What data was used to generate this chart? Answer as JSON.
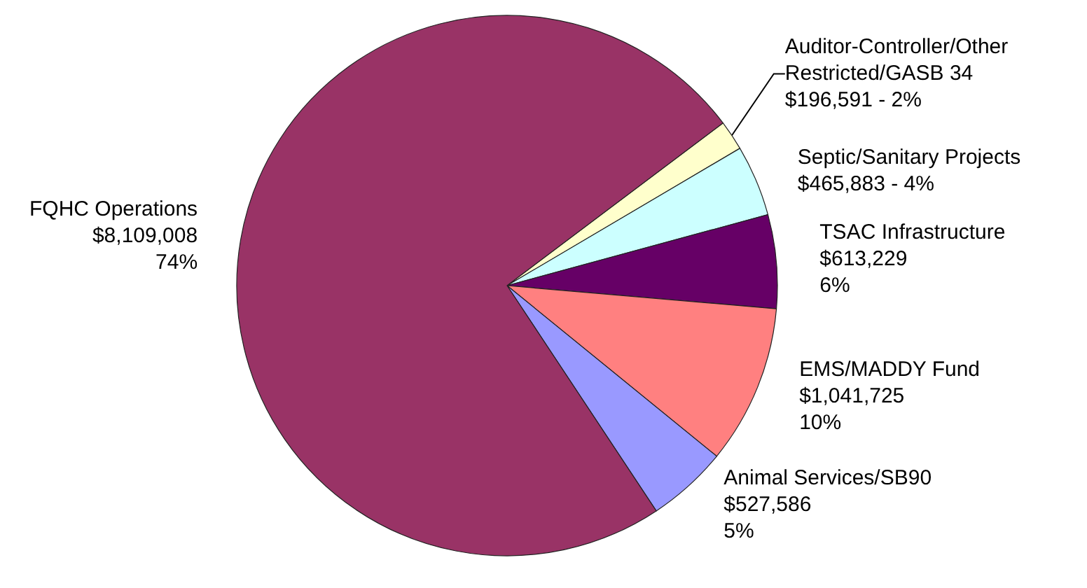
{
  "chart_data": {
    "type": "pie",
    "categories": [
      "Auditor-Controller/Other Restricted/GASB 34",
      "Septic/Sanitary Projects",
      "TSAC Infrastructure",
      "EMS/MADDY Fund",
      "Animal Services/SB90",
      "FQHC Operations"
    ],
    "values": [
      196591,
      465883,
      613229,
      1041725,
      527586,
      8109008
    ],
    "value_labels": [
      "$196,591 - 2%",
      "$465,883 - 4%",
      "$613,229\n6%",
      "$1,041,725\n10%",
      "$527,586\n5%",
      "$8,109,008\n74%"
    ],
    "colors": [
      "#ffffcc",
      "#ccffff",
      "#660066",
      "#ff8080",
      "#9999ff",
      "#993366"
    ],
    "legend": false
  }
}
